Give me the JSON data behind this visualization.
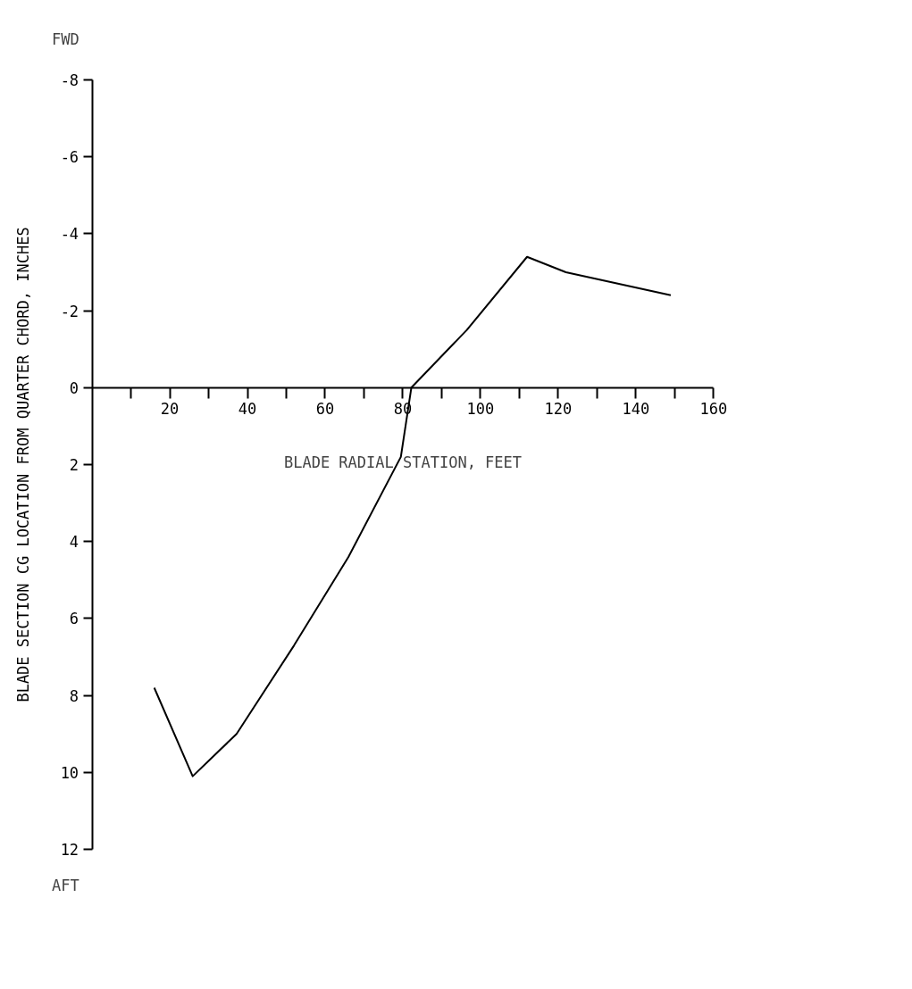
{
  "chart_data": {
    "type": "line",
    "xlabel": "BLADE RADIAL STATION, FEET",
    "ylabel": "BLADE SECTION CG LOCATION FROM QUARTER CHORD, INCHES",
    "annotations": [
      "FWD",
      "AFT"
    ],
    "x": [
      16,
      25.9,
      37.2,
      52,
      66,
      79.5,
      82.2,
      96.5,
      112,
      122,
      149
    ],
    "series": [
      {
        "color": "#000000",
        "values": [
          7.8,
          10.1,
          9.0,
          6.7,
          4.4,
          1.8,
          0,
          -1.5,
          -3.4,
          -3.0,
          -2.4
        ]
      }
    ],
    "xlim": [
      0,
      160
    ],
    "ylim": [
      12,
      -8
    ],
    "xticks": [
      {
        "value": 10,
        "label": null
      },
      20,
      {
        "value": 30,
        "label": null
      },
      40,
      {
        "value": 50,
        "label": null
      },
      60,
      {
        "value": 70,
        "label": null
      },
      80,
      {
        "value": 90,
        "label": null
      },
      100,
      {
        "value": 110,
        "label": null
      },
      120,
      {
        "value": 130,
        "label": null
      },
      140,
      {
        "value": 150,
        "label": null
      },
      160
    ],
    "yticks": [
      -8,
      -6,
      -4,
      -2,
      0,
      2,
      4,
      6,
      8,
      10,
      12
    ],
    "grid": false,
    "marker": "none",
    "line_style": "solid"
  }
}
